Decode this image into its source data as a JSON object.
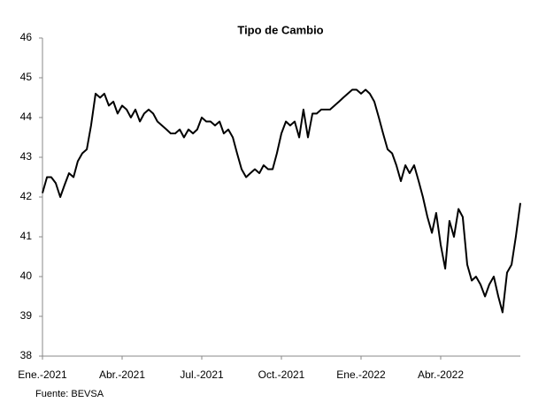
{
  "chart_data": {
    "type": "line",
    "title": "Tipo de Cambio",
    "source": "Fuente: BEVSA",
    "x": [
      0,
      0.17,
      0.33,
      0.5,
      0.67,
      0.83,
      1,
      1.17,
      1.33,
      1.5,
      1.67,
      1.83,
      2,
      2.17,
      2.33,
      2.5,
      2.67,
      2.83,
      3,
      3.17,
      3.33,
      3.5,
      3.67,
      3.83,
      4,
      4.17,
      4.33,
      4.5,
      4.67,
      4.83,
      5,
      5.17,
      5.33,
      5.5,
      5.67,
      5.83,
      6,
      6.17,
      6.33,
      6.5,
      6.67,
      6.83,
      7,
      7.17,
      7.33,
      7.5,
      7.67,
      7.83,
      8,
      8.17,
      8.33,
      8.5,
      8.67,
      8.83,
      9,
      9.17,
      9.33,
      9.5,
      9.67,
      9.83,
      10,
      10.17,
      10.33,
      10.5,
      10.67,
      10.83,
      11,
      11.17,
      11.33,
      11.5,
      11.67,
      11.83,
      12,
      12.17,
      12.33,
      12.5,
      12.67,
      12.83,
      13,
      13.17,
      13.33,
      13.5,
      13.67,
      13.83,
      14,
      14.17,
      14.33,
      14.5,
      14.67,
      14.83,
      15,
      15.17,
      15.33,
      15.5,
      15.67,
      15.83,
      16,
      16.17,
      16.33,
      16.5,
      16.67,
      16.83,
      17,
      17.17,
      17.33,
      17.5,
      17.67,
      17.83,
      18
    ],
    "series": [
      {
        "color": "#000000",
        "values": [
          42.1,
          42.5,
          42.5,
          42.35,
          42.0,
          42.3,
          42.6,
          42.5,
          42.9,
          43.1,
          43.2,
          43.8,
          44.6,
          44.5,
          44.6,
          44.3,
          44.4,
          44.1,
          44.3,
          44.2,
          44.0,
          44.2,
          43.9,
          44.1,
          44.2,
          44.1,
          43.9,
          43.8,
          43.7,
          43.6,
          43.6,
          43.7,
          43.5,
          43.7,
          43.6,
          43.7,
          44.0,
          43.9,
          43.9,
          43.8,
          43.9,
          43.6,
          43.7,
          43.5,
          43.1,
          42.7,
          42.5,
          42.6,
          42.7,
          42.6,
          42.8,
          42.7,
          42.7,
          43.1,
          43.6,
          43.9,
          43.8,
          43.9,
          43.5,
          44.2,
          43.5,
          44.1,
          44.1,
          44.2,
          44.2,
          44.2,
          44.3,
          44.4,
          44.5,
          44.6,
          44.7,
          44.7,
          44.6,
          44.7,
          44.6,
          44.4,
          44.0,
          43.6,
          43.2,
          43.1,
          42.8,
          42.4,
          42.8,
          42.6,
          42.8,
          42.4,
          42.0,
          41.5,
          41.1,
          41.6,
          40.8,
          40.2,
          41.4,
          41.0,
          41.7,
          41.5,
          40.3,
          39.9,
          40.0,
          39.8,
          39.5,
          39.8,
          40.0,
          39.5,
          39.1,
          40.1,
          40.3,
          41.0,
          41.85
        ]
      }
    ],
    "xlim": [
      0,
      18
    ],
    "xticks": [
      {
        "value": 0,
        "label": "Ene.-2021"
      },
      {
        "value": 3,
        "label": "Abr.-2021"
      },
      {
        "value": 6,
        "label": "Jul.-2021"
      },
      {
        "value": 9,
        "label": "Oct.-2021"
      },
      {
        "value": 12,
        "label": "Ene.-2022"
      },
      {
        "value": 15,
        "label": "Abr.-2022"
      }
    ],
    "ylim": [
      38,
      46
    ],
    "yticks": [
      38,
      39,
      40,
      41,
      42,
      43,
      44,
      45,
      46
    ],
    "grid": false
  }
}
